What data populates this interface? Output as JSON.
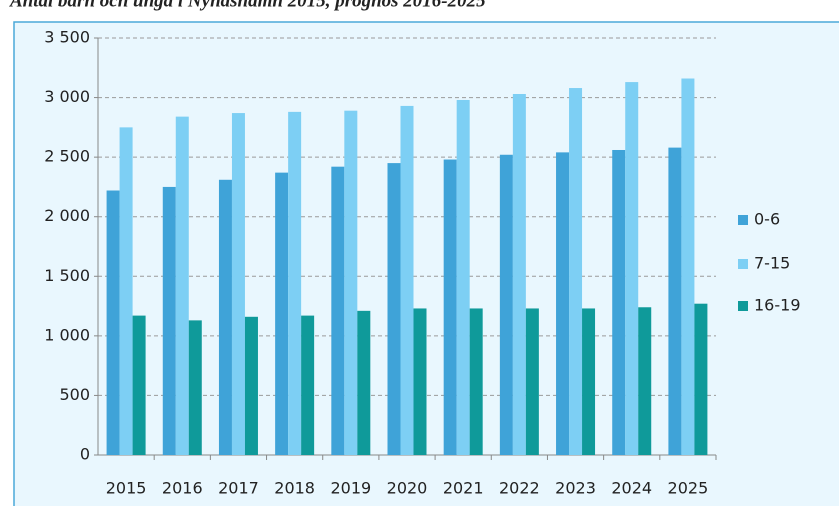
{
  "chart_data": {
    "type": "bar",
    "title": "Antal barn och unga i Nynäshamn 2015, prognos 2016-2025",
    "categories": [
      "2015",
      "2016",
      "2017",
      "2018",
      "2019",
      "2020",
      "2021",
      "2022",
      "2023",
      "2024",
      "2025"
    ],
    "series": [
      {
        "name": "0-6",
        "color": "#3fa3d8",
        "values": [
          2220,
          2250,
          2310,
          2370,
          2420,
          2450,
          2480,
          2520,
          2540,
          2560,
          2580
        ]
      },
      {
        "name": "7-15",
        "color": "#7dcff4",
        "values": [
          2750,
          2840,
          2870,
          2880,
          2890,
          2930,
          2980,
          3030,
          3080,
          3130,
          3160
        ]
      },
      {
        "name": "16-19",
        "color": "#0f9a9a",
        "values": [
          1170,
          1130,
          1160,
          1170,
          1210,
          1230,
          1230,
          1230,
          1230,
          1240,
          1270
        ]
      }
    ],
    "ylim": [
      0,
      3500
    ],
    "yticks": [
      0,
      500,
      {
        "value": 1000,
        "label": "1 000"
      },
      {
        "value": 1500,
        "label": "1 500"
      },
      {
        "value": 2000,
        "label": "2 000"
      },
      {
        "value": 2500,
        "label": "2 500"
      },
      {
        "value": 3000,
        "label": "3 000"
      },
      {
        "value": 3500,
        "label": "3 500"
      }
    ],
    "grid": true,
    "legend": "right"
  }
}
